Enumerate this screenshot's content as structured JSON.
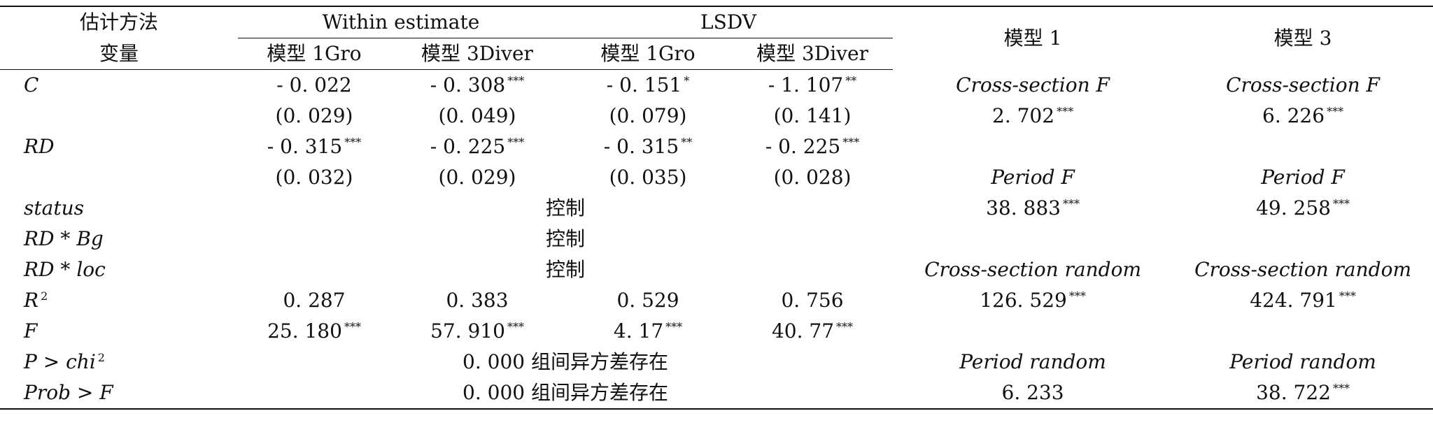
{
  "header": {
    "method_label": "估计方法",
    "variable_label": "变量",
    "within": "Within estimate",
    "lsdv": "LSDV",
    "model1_gro": "模型 1Gro",
    "model3_diver": "模型 3Diver",
    "model1": "模型 1",
    "model3": "模型 3"
  },
  "rows": [
    {
      "label": "C",
      "v": [
        "- 0. 022",
        "- 0. 308",
        "- 0. 151",
        "- 1. 107"
      ],
      "s": [
        "",
        "***",
        "*",
        "**"
      ],
      "m1": "Cross-section F",
      "m1s": "",
      "m3": "Cross-section F",
      "m3s": ""
    },
    {
      "label": "",
      "v": [
        "(0. 029)",
        "(0. 049)",
        "(0. 079)",
        "(0. 141)"
      ],
      "s": [
        "",
        "",
        "",
        ""
      ],
      "m1": "2. 702",
      "m1s": "***",
      "m3": "6. 226",
      "m3s": "***"
    },
    {
      "label": "RD",
      "v": [
        "- 0. 315",
        "- 0. 225",
        "- 0. 315",
        "- 0. 225"
      ],
      "s": [
        "***",
        "***",
        "**",
        "***"
      ],
      "m1": "",
      "m1s": "",
      "m3": "",
      "m3s": ""
    },
    {
      "label": "",
      "v": [
        "(0. 032)",
        "(0. 029)",
        "(0. 035)",
        "(0. 028)"
      ],
      "s": [
        "",
        "",
        "",
        ""
      ],
      "m1": "Period F",
      "m1s": "",
      "m3": "Period F",
      "m3s": ""
    }
  ],
  "control_rows": [
    {
      "label": "status",
      "text": "控制",
      "m1": "38. 883",
      "m1s": "***",
      "m3": "49. 258",
      "m3s": "***"
    },
    {
      "label": "RD * Bg",
      "text": "控制",
      "m1": "",
      "m1s": "",
      "m3": "",
      "m3s": ""
    },
    {
      "label": "RD * loc",
      "text": "控制",
      "m1": "Cross-section random",
      "m1s": "",
      "m3": "Cross-section random",
      "m3s": ""
    }
  ],
  "r2_row": {
    "label": "R",
    "sup": "2",
    "v": [
      "0. 287",
      "0. 383",
      "0. 529",
      "0. 756"
    ],
    "m1": "126. 529",
    "m1s": "***",
    "m3": "424. 791",
    "m3s": "***"
  },
  "f_row": {
    "label": "F",
    "v": [
      "25. 180",
      "57. 910",
      "4. 17",
      "40. 77"
    ],
    "s": [
      "***",
      "***",
      "***",
      "***"
    ]
  },
  "test_rows": [
    {
      "label": "P > chi",
      "sup": "2",
      "text": "0. 000 组间异方差存在",
      "m1": "Period random",
      "m1s": "",
      "m3": "Period random",
      "m3s": ""
    },
    {
      "label": "Prob > F",
      "sup": "",
      "text": "0. 000 组间异方差存在",
      "m1": "6. 233",
      "m1s": "",
      "m3": "38. 722",
      "m3s": "***"
    }
  ]
}
